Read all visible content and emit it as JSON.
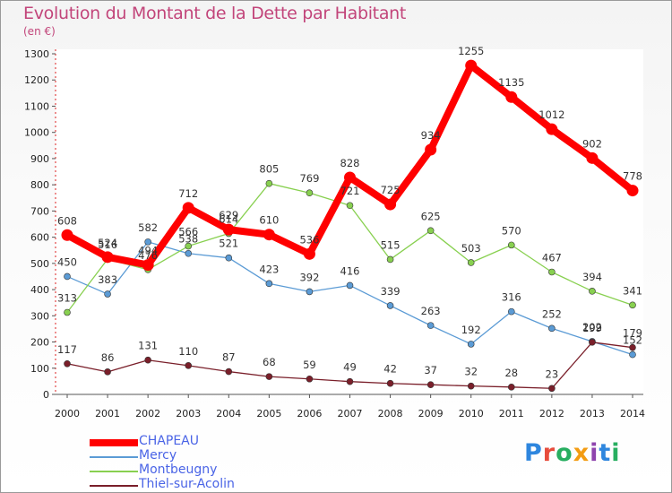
{
  "title": "Evolution du Montant de la Dette par Habitant",
  "subtitle": "(en €)",
  "logo": "Proxiti",
  "chart_data": {
    "type": "line",
    "x": [
      "2000",
      "2001",
      "2002",
      "2003",
      "2004",
      "2005",
      "2006",
      "2007",
      "2008",
      "2009",
      "2010",
      "2011",
      "2012",
      "2013",
      "2014"
    ],
    "ylim": [
      0,
      1300
    ],
    "yticks": [
      0,
      100,
      200,
      300,
      400,
      500,
      600,
      700,
      800,
      900,
      1000,
      1100,
      1200,
      1300
    ],
    "legend_position": "bottom-left",
    "series": [
      {
        "name": "CHAPEAU",
        "color": "#ff0000",
        "values": [
          608,
          524,
          494,
          712,
          629,
          610,
          536,
          828,
          725,
          934,
          1255,
          1135,
          1012,
          902,
          778
        ]
      },
      {
        "name": "Mercy",
        "color": "#5b9bd5",
        "values": [
          450,
          383,
          582,
          538,
          521,
          423,
          392,
          416,
          339,
          263,
          192,
          316,
          252,
          202,
          152
        ]
      },
      {
        "name": "Montbeugny",
        "color": "#88d050",
        "values": [
          313,
          516,
          476,
          566,
          614,
          805,
          769,
          721,
          515,
          625,
          503,
          570,
          467,
          394,
          341
        ]
      },
      {
        "name": "Thiel-sur-Acolin",
        "color": "#7a1f2a",
        "values": [
          117,
          86,
          131,
          110,
          87,
          68,
          59,
          49,
          42,
          37,
          32,
          28,
          23,
          199,
          179
        ]
      }
    ]
  }
}
